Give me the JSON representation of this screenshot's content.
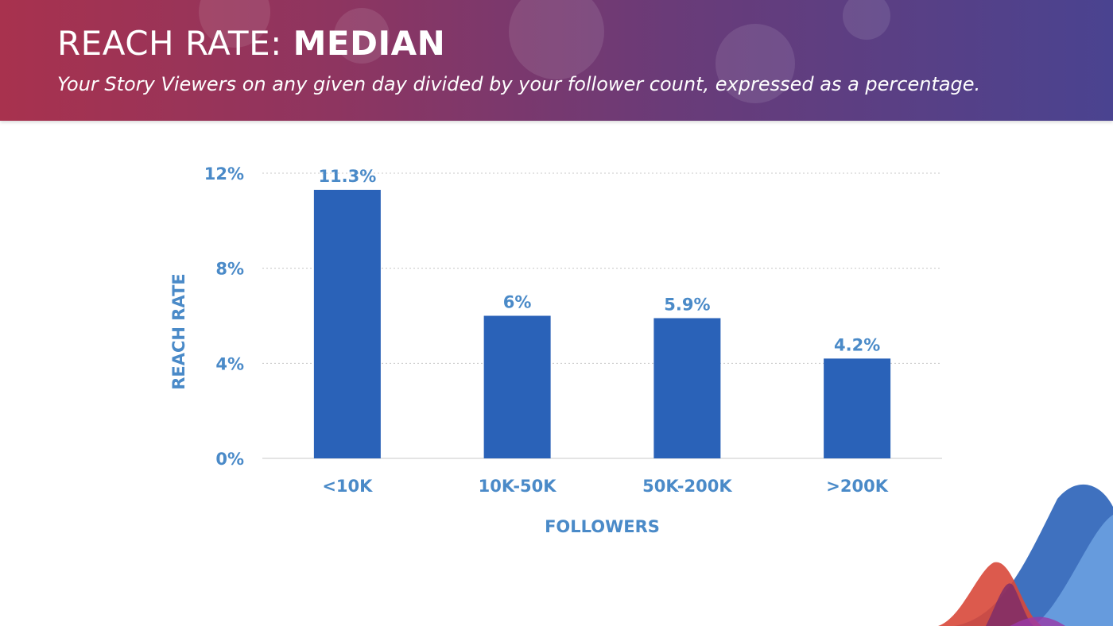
{
  "header": {
    "title_light": "REACH RATE:",
    "title_bold": "MEDIAN",
    "subtitle": "Your Story Viewers on any given day divided by your follower count, expressed as a percentage."
  },
  "colors": {
    "bar": "#2a62b8",
    "text_accent": "#4a8ac8",
    "grid": "#c8c8c8"
  },
  "chart_data": {
    "type": "bar",
    "categories": [
      "<10K",
      "10K-50K",
      "50K-200K",
      ">200K"
    ],
    "values": [
      11.3,
      6,
      5.9,
      4.2
    ],
    "value_labels": [
      "11.3%",
      "6%",
      "5.9%",
      "4.2%"
    ],
    "xlabel": "FOLLOWERS",
    "ylabel": "REACH RATE",
    "ylim": [
      0,
      12
    ],
    "yticks": [
      0,
      4,
      8,
      12
    ],
    "ytick_labels": [
      "0%",
      "4%",
      "8%",
      "12%"
    ],
    "grid": true
  }
}
